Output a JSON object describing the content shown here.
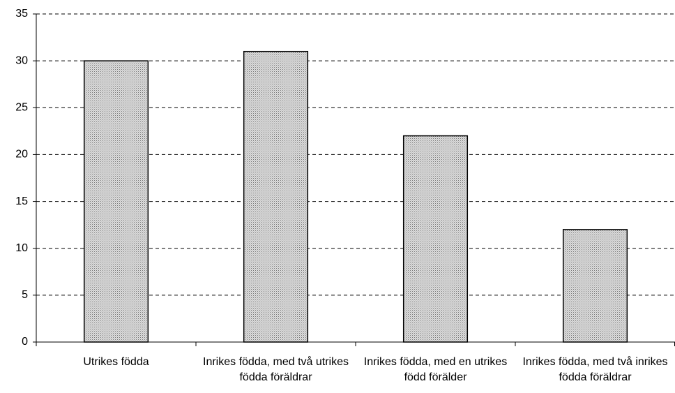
{
  "chart_data": {
    "type": "bar",
    "categories": [
      "Utrikes födda",
      "Inrikes födda, med två utrikes födda föräldrar",
      "Inrikes födda, med en utrikes född förälder",
      "Inrikes födda, med två inrikes födda föräldrar"
    ],
    "values": [
      30,
      31,
      22,
      12
    ],
    "color": "#dcdcdc",
    "ylim": [
      0,
      35
    ],
    "yticks": [
      0,
      5,
      10,
      15,
      20,
      25,
      30,
      35
    ],
    "grid": true
  }
}
